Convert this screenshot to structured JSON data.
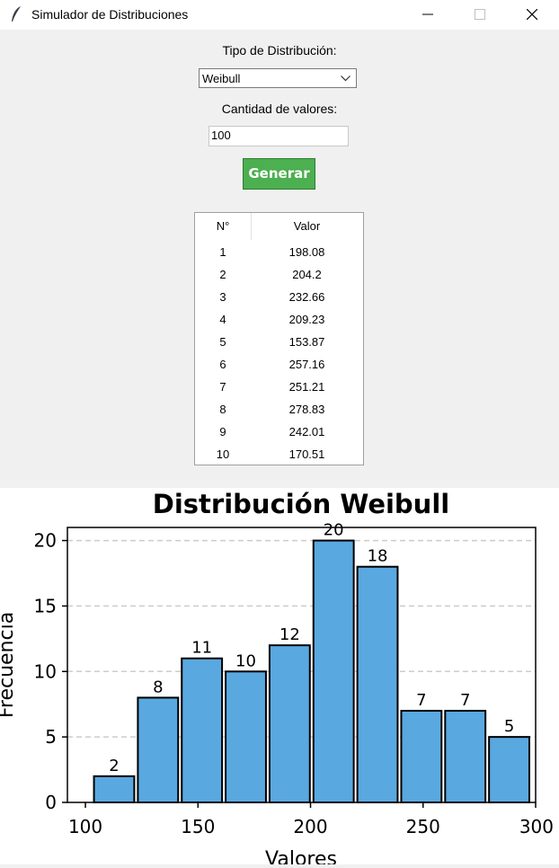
{
  "window": {
    "title": "Simulador de Distribuciones"
  },
  "form": {
    "dist_label": "Tipo de Distribución:",
    "dist_value": "Weibull",
    "count_label": "Cantidad de valores:",
    "count_value": "100",
    "generate_label": "Generar"
  },
  "table": {
    "headers": [
      "N°",
      "Valor"
    ],
    "rows": [
      [
        "1",
        "198.08"
      ],
      [
        "2",
        "204.2"
      ],
      [
        "3",
        "232.66"
      ],
      [
        "4",
        "209.23"
      ],
      [
        "5",
        "153.87"
      ],
      [
        "6",
        "257.16"
      ],
      [
        "7",
        "251.21"
      ],
      [
        "8",
        "278.83"
      ],
      [
        "9",
        "242.01"
      ],
      [
        "10",
        "170.51"
      ]
    ]
  },
  "colors": {
    "bar": "#5aa8e0",
    "button": "#4caf50"
  },
  "chart_data": {
    "type": "bar",
    "title": "Distribución Weibull",
    "xlabel": "Valores",
    "ylabel": "Frecuencia",
    "bin_edges": [
      103,
      122.5,
      142,
      161.5,
      181,
      200.5,
      220,
      239.5,
      259,
      278.5,
      298
    ],
    "values": [
      2,
      8,
      11,
      10,
      12,
      20,
      18,
      7,
      7,
      5
    ],
    "xticks": [
      100,
      150,
      200,
      250,
      300
    ],
    "yticks": [
      0,
      5,
      10,
      15,
      20
    ],
    "xlim": [
      92,
      300
    ],
    "ylim": [
      0,
      21
    ],
    "grid": "y-dashed"
  }
}
